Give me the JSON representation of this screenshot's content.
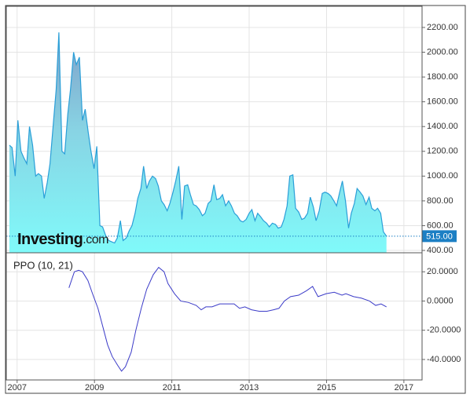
{
  "chart_data": [
    {
      "type": "area",
      "watermark_brand": "Investing",
      "watermark_suffix": ".com",
      "current_value": 515,
      "current_value_label": "515.00",
      "x": [
        2006.8,
        2006.87,
        2006.95,
        2007.02,
        2007.1,
        2007.17,
        2007.25,
        2007.32,
        2007.4,
        2007.48,
        2007.55,
        2007.63,
        2007.7,
        2007.78,
        2007.85,
        2007.93,
        2008.01,
        2008.08,
        2008.16,
        2008.23,
        2008.31,
        2008.38,
        2008.46,
        2008.53,
        2008.61,
        2008.69,
        2008.76,
        2008.84,
        2008.91,
        2008.99,
        2009.06,
        2009.14,
        2009.21,
        2009.29,
        2009.37,
        2009.44,
        2009.52,
        2009.59,
        2009.67,
        2009.74,
        2009.82,
        2009.9,
        2009.97,
        2010.05,
        2010.12,
        2010.2,
        2010.27,
        2010.35,
        2010.42,
        2010.5,
        2010.58,
        2010.65,
        2010.73,
        2010.8,
        2010.88,
        2010.95,
        2011.03,
        2011.1,
        2011.18,
        2011.26,
        2011.33,
        2011.41,
        2011.48,
        2011.56,
        2011.63,
        2011.71,
        2011.79,
        2011.86,
        2011.94,
        2012.01,
        2012.09,
        2012.16,
        2012.24,
        2012.31,
        2012.39,
        2012.47,
        2012.54,
        2012.62,
        2012.69,
        2012.77,
        2012.84,
        2012.92,
        2013.0,
        2013.07,
        2013.15,
        2013.22,
        2013.3,
        2013.37,
        2013.45,
        2013.52,
        2013.6,
        2013.68,
        2013.75,
        2013.83,
        2013.9,
        2013.98,
        2014.05,
        2014.13,
        2014.2,
        2014.28,
        2014.36,
        2014.43,
        2014.51,
        2014.58,
        2014.66,
        2014.73,
        2014.81,
        2014.89,
        2014.96,
        2015.04,
        2015.11,
        2015.19,
        2015.26,
        2015.34,
        2015.41,
        2015.49,
        2015.57,
        2015.64,
        2015.72,
        2015.79,
        2015.87,
        2015.94,
        2016.02,
        2016.1,
        2016.17,
        2016.25,
        2016.32,
        2016.4,
        2016.47,
        2016.55
      ],
      "series": [
        {
          "color": "#2a9fd8",
          "values": [
            1250,
            1230,
            1000,
            1450,
            1200,
            1150,
            1100,
            1400,
            1250,
            1000,
            1020,
            1000,
            820,
            950,
            1100,
            1400,
            1700,
            2160,
            1200,
            1180,
            1500,
            1700,
            2000,
            1900,
            1960,
            1450,
            1540,
            1350,
            1200,
            1060,
            1240,
            600,
            590,
            520,
            480,
            470,
            460,
            500,
            640,
            480,
            500,
            560,
            600,
            700,
            820,
            900,
            1080,
            900,
            960,
            1000,
            980,
            920,
            800,
            770,
            720,
            780,
            870,
            960,
            1080,
            650,
            920,
            930,
            850,
            770,
            760,
            730,
            680,
            700,
            780,
            800,
            930,
            810,
            820,
            850,
            760,
            800,
            760,
            700,
            680,
            640,
            630,
            650,
            700,
            730,
            640,
            700,
            670,
            640,
            620,
            590,
            620,
            610,
            580,
            590,
            650,
            760,
            1000,
            1010,
            740,
            710,
            650,
            660,
            700,
            830,
            750,
            640,
            720,
            860,
            870,
            860,
            840,
            800,
            760,
            870,
            960,
            800,
            580,
            700,
            780,
            900,
            870,
            840,
            770,
            830,
            740,
            720,
            740,
            700,
            550,
            515
          ]
        }
      ],
      "xlim": [
        2006.72,
        2017.47
      ],
      "xticks": [
        2007,
        2009,
        2011,
        2013,
        2015,
        2017
      ],
      "ylim": [
        381,
        2371
      ],
      "yticks": [
        {
          "value": 400,
          "label": "400.00"
        },
        {
          "value": 600,
          "label": "600.00"
        },
        {
          "value": 800,
          "label": "800.00"
        },
        {
          "value": 1000,
          "label": "1000.00"
        },
        {
          "value": 1200,
          "label": "1200.00"
        },
        {
          "value": 1400,
          "label": "1400.00"
        },
        {
          "value": 1600,
          "label": "1600.00"
        },
        {
          "value": 1800,
          "label": "1800.00"
        },
        {
          "value": 2000,
          "label": "2000.00"
        },
        {
          "value": 2200,
          "label": "2200.00"
        }
      ],
      "grid": true
    },
    {
      "type": "line",
      "title": "PPO (10, 21)",
      "x": [
        2008.34,
        2008.48,
        2008.59,
        2008.69,
        2008.83,
        2008.95,
        2009.09,
        2009.24,
        2009.34,
        2009.46,
        2009.6,
        2009.7,
        2009.8,
        2009.95,
        2010.07,
        2010.21,
        2010.35,
        2010.52,
        2010.66,
        2010.8,
        2010.9,
        2011.07,
        2011.23,
        2011.43,
        2011.63,
        2011.76,
        2011.88,
        2012.04,
        2012.24,
        2012.45,
        2012.61,
        2012.75,
        2012.89,
        2013.06,
        2013.26,
        2013.46,
        2013.63,
        2013.77,
        2013.91,
        2014.07,
        2014.28,
        2014.48,
        2014.64,
        2014.78,
        2014.99,
        2015.2,
        2015.4,
        2015.5,
        2015.7,
        2015.9,
        2016.11,
        2016.27,
        2016.41,
        2016.55
      ],
      "series": [
        {
          "color": "#3b3bc8",
          "values": [
            9,
            20,
            21,
            20,
            14,
            5,
            -5,
            -20,
            -30,
            -38,
            -44,
            -48,
            -45,
            -35,
            -20,
            -5,
            8,
            18,
            23,
            20,
            12,
            5,
            0,
            -1,
            -3,
            -6,
            -4,
            -4,
            -2,
            -2,
            -2,
            -5,
            -4,
            -6,
            -7,
            -7,
            -6,
            -5,
            0,
            3,
            4,
            7,
            10,
            3,
            5,
            6,
            4,
            5,
            3,
            2,
            0,
            -3,
            -2,
            -4
          ]
        }
      ],
      "xlim": [
        2006.72,
        2017.47
      ],
      "xticks": [
        2007,
        2009,
        2011,
        2013,
        2015,
        2017
      ],
      "ylim": [
        -54,
        33
      ],
      "yticks": [
        {
          "value": 20,
          "label": "20.0000"
        },
        {
          "value": 0,
          "label": "0.0000"
        },
        {
          "value": -20,
          "label": "-20.0000"
        },
        {
          "value": -40,
          "label": "-40.0000"
        }
      ],
      "grid": true
    }
  ]
}
